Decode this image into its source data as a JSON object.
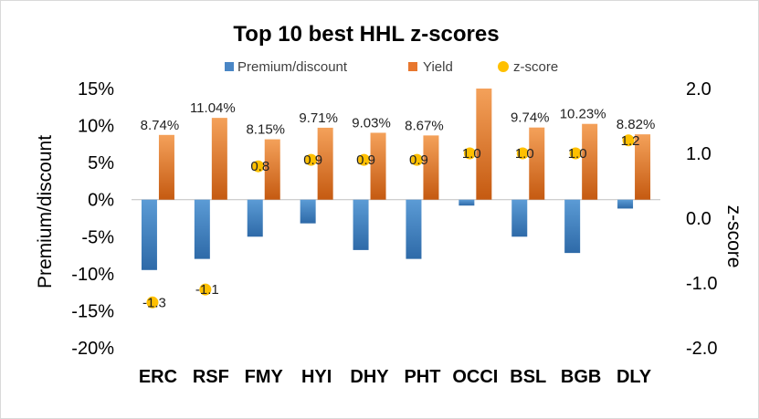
{
  "chart_data": {
    "type": "bar",
    "title": "Top 10 best HHL z-scores",
    "categories": [
      "ERC",
      "RSF",
      "FMY",
      "HYI",
      "DHY",
      "PHT",
      "OCCI",
      "BSL",
      "BGB",
      "DLY"
    ],
    "series": [
      {
        "name": "Premium/discount",
        "kind": "bar",
        "axis": "left",
        "color": "#4a86c5",
        "values": [
          -9.5,
          -8.0,
          -5.0,
          -3.2,
          -6.8,
          -8.0,
          -0.8,
          -5.0,
          -7.2,
          -1.2
        ]
      },
      {
        "name": "Yield",
        "kind": "bar",
        "axis": "left",
        "color": "#e8772e",
        "values": [
          8.74,
          11.04,
          8.15,
          9.71,
          9.03,
          8.67,
          15.0,
          9.74,
          10.23,
          8.82
        ],
        "labels": [
          "8.74%",
          "11.04%",
          "8.15%",
          "9.71%",
          "9.03%",
          "8.67%",
          "",
          "9.74%",
          "10.23%",
          "8.82%"
        ]
      },
      {
        "name": "z-score",
        "kind": "scatter",
        "axis": "right",
        "color": "#ffc000",
        "values": [
          -1.3,
          -1.1,
          0.8,
          0.9,
          0.9,
          0.9,
          1.0,
          1.0,
          1.0,
          1.2
        ],
        "labels": [
          "-1.3",
          "-1.1",
          "0.8",
          "0.9",
          "0.9",
          "0.9",
          "1.0",
          "1.0",
          "1.0",
          "1.2"
        ]
      }
    ],
    "ylabel": "Premium/discount",
    "y2label": "z-score",
    "ylim": [
      -20,
      15
    ],
    "y2lim": [
      -2.0,
      2.0
    ],
    "yticks": [
      "15%",
      "10%",
      "5%",
      "0%",
      "-5%",
      "-10%",
      "-15%",
      "-20%"
    ],
    "y2ticks": [
      "2.0",
      "1.0",
      "0.0",
      "-1.0",
      "-2.0"
    ],
    "grid": false,
    "legend_position": "top"
  }
}
